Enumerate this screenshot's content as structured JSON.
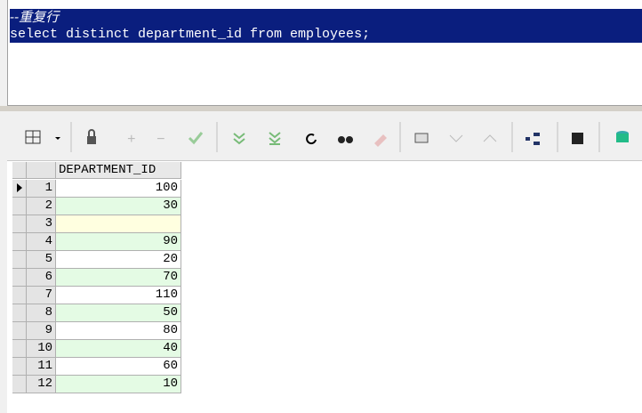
{
  "editor": {
    "lines": [
      "--重复行",
      "select distinct department_id from employees;"
    ]
  },
  "grid": {
    "header": "DEPARTMENT_ID",
    "rows": [
      {
        "num": 1,
        "value": 100
      },
      {
        "num": 2,
        "value": 30
      },
      {
        "num": 3,
        "value": null
      },
      {
        "num": 4,
        "value": 90
      },
      {
        "num": 5,
        "value": 20
      },
      {
        "num": 6,
        "value": 70
      },
      {
        "num": 7,
        "value": 110
      },
      {
        "num": 8,
        "value": 50
      },
      {
        "num": 9,
        "value": 80
      },
      {
        "num": 10,
        "value": 40
      },
      {
        "num": 11,
        "value": 60
      },
      {
        "num": 12,
        "value": 10
      }
    ]
  }
}
